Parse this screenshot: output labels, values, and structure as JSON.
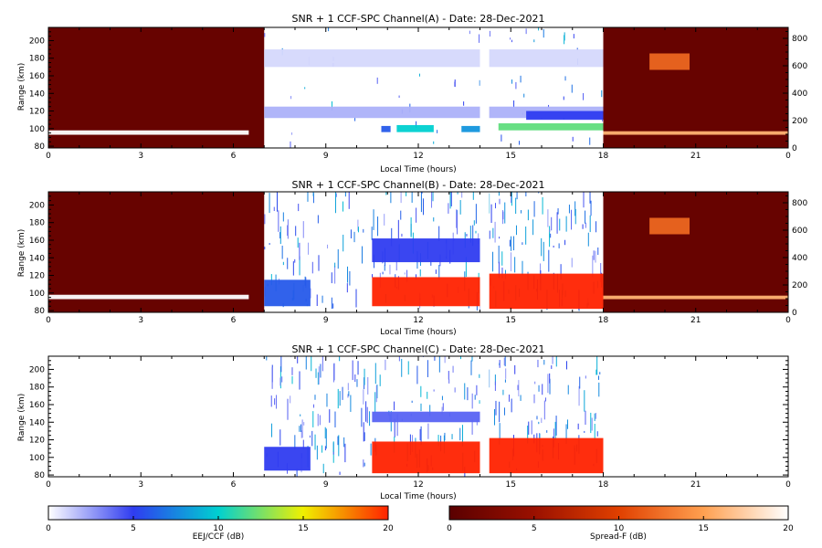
{
  "figure": {
    "panels": [
      {
        "title": "SNR + 1 CCF-SPC Channel(A) - Date: 28-Dec-2021",
        "xlabel": "Local Time (hours)",
        "ylabel": "Range (km)",
        "left_ticks": [
          "80",
          "100",
          "120",
          "140",
          "160",
          "180",
          "200"
        ],
        "right_ticks": [
          "0",
          "200",
          "400",
          "600",
          "800"
        ],
        "x_ticks": [
          "0",
          "3",
          "6",
          "9",
          "12",
          "15",
          "18",
          "21",
          "0"
        ]
      },
      {
        "title": "SNR + 1 CCF-SPC Channel(B) - Date: 28-Dec-2021",
        "xlabel": "Local Time (hours)",
        "ylabel": "Range (km)",
        "left_ticks": [
          "80",
          "100",
          "120",
          "140",
          "160",
          "180",
          "200"
        ],
        "right_ticks": [
          "0",
          "200",
          "400",
          "600",
          "800"
        ],
        "x_ticks": [
          "0",
          "3",
          "6",
          "9",
          "12",
          "15",
          "18",
          "21",
          "0"
        ]
      },
      {
        "title": "SNR + 1 CCF-SPC Channel(C) - Date: 28-Dec-2021",
        "xlabel": "Local Time (hours)",
        "ylabel": "Range (km)",
        "left_ticks": [
          "80",
          "100",
          "120",
          "140",
          "160",
          "180",
          "200"
        ],
        "right_ticks": [],
        "x_ticks": [
          "0",
          "3",
          "6",
          "9",
          "12",
          "15",
          "18",
          "21",
          "0"
        ]
      }
    ],
    "colorbars": [
      {
        "label": "EEJ/CCF (dB)",
        "ticks": [
          "0",
          "5",
          "10",
          "15",
          "20"
        ],
        "colors": [
          "#ffffff",
          "#2f3cf0",
          "#00d0d0",
          "#f0f000",
          "#ff2200"
        ]
      },
      {
        "label": "Spread-F (dB)",
        "ticks": [
          "0",
          "5",
          "10",
          "15",
          "20"
        ],
        "colors": [
          "#5a0000",
          "#9a1000",
          "#e04000",
          "#ffa050",
          "#ffffff"
        ]
      }
    ]
  },
  "chart_data": [
    {
      "type": "heatmap",
      "title": "SNR + 1 CCF-SPC Channel(A) - Date: 28-Dec-2021",
      "xlabel": "Local Time (hours)",
      "ylabel": "Range (km)",
      "xlim": [
        0,
        24
      ],
      "ylim": [
        78,
        215
      ],
      "y2lim": [
        0,
        880
      ],
      "colormaps": {
        "daytime": "EEJ/CCF (dB)",
        "nighttime": "Spread-F (dB)"
      },
      "nighttime_background_db": 1,
      "regions": [
        {
          "t": [
            0,
            6.5
          ],
          "h": [
            93,
            98
          ],
          "db": 20
        },
        {
          "t": [
            18,
            24
          ],
          "h": [
            93,
            97
          ],
          "db": 16
        },
        {
          "t": [
            7,
            18
          ],
          "h": [
            112,
            125
          ],
          "db": 2
        },
        {
          "t": [
            7,
            18
          ],
          "h": [
            170,
            190
          ],
          "db": 1
        },
        {
          "t": [
            10.8,
            11.1
          ],
          "h": [
            96,
            103
          ],
          "db": 6
        },
        {
          "t": [
            11.3,
            12.5
          ],
          "h": [
            96,
            104
          ],
          "db": 10
        },
        {
          "t": [
            13.4,
            14.0
          ],
          "h": [
            96,
            103
          ],
          "db": 8
        },
        {
          "t": [
            14.6,
            18
          ],
          "h": [
            98,
            106
          ],
          "db": 12
        },
        {
          "t": [
            15.5,
            18
          ],
          "h": [
            110,
            120
          ],
          "db": 5
        },
        {
          "t": [
            19.5,
            20.8
          ],
          "h": [
            570,
            690
          ],
          "db": 12,
          "axis": "right"
        }
      ],
      "gaps": [
        [
          14.0,
          14.3
        ]
      ]
    },
    {
      "type": "heatmap",
      "title": "SNR + 1 CCF-SPC Channel(B) - Date: 28-Dec-2021",
      "xlabel": "Local Time (hours)",
      "ylabel": "Range (km)",
      "xlim": [
        0,
        24
      ],
      "ylim": [
        78,
        215
      ],
      "y2lim": [
        0,
        880
      ],
      "colormaps": {
        "daytime": "EEJ/CCF (dB)",
        "nighttime": "Spread-F (dB)"
      },
      "nighttime_background_db": 1,
      "regions": [
        {
          "t": [
            0,
            6.5
          ],
          "h": [
            93,
            98
          ],
          "db": 20
        },
        {
          "t": [
            18,
            24
          ],
          "h": [
            93,
            97
          ],
          "db": 16
        },
        {
          "t": [
            7,
            8.5
          ],
          "h": [
            85,
            115
          ],
          "db": 6
        },
        {
          "t": [
            10.5,
            14.0
          ],
          "h": [
            85,
            118
          ],
          "db": 20
        },
        {
          "t": [
            14.3,
            18
          ],
          "h": [
            82,
            122
          ],
          "db": 20
        },
        {
          "t": [
            10.5,
            14.0
          ],
          "h": [
            135,
            162
          ],
          "db": 5
        },
        {
          "t": [
            19.5,
            20.8
          ],
          "h": [
            570,
            690
          ],
          "db": 12,
          "axis": "right"
        }
      ],
      "gaps": [
        [
          14.0,
          14.3
        ]
      ]
    },
    {
      "type": "heatmap",
      "title": "SNR + 1 CCF-SPC Channel(C) - Date: 28-Dec-2021",
      "xlabel": "Local Time (hours)",
      "ylabel": "Range (km)",
      "xlim": [
        0,
        24
      ],
      "ylim": [
        78,
        215
      ],
      "colormaps": {
        "daytime": "EEJ/CCF (dB)"
      },
      "regions": [
        {
          "t": [
            7,
            8.5
          ],
          "h": [
            85,
            112
          ],
          "db": 5
        },
        {
          "t": [
            10.5,
            14.0
          ],
          "h": [
            82,
            118
          ],
          "db": 20
        },
        {
          "t": [
            14.3,
            18
          ],
          "h": [
            82,
            122
          ],
          "db": 20
        },
        {
          "t": [
            10.5,
            14.0
          ],
          "h": [
            140,
            152
          ],
          "db": 4
        }
      ],
      "gaps": [
        [
          14.0,
          14.3
        ]
      ]
    }
  ]
}
